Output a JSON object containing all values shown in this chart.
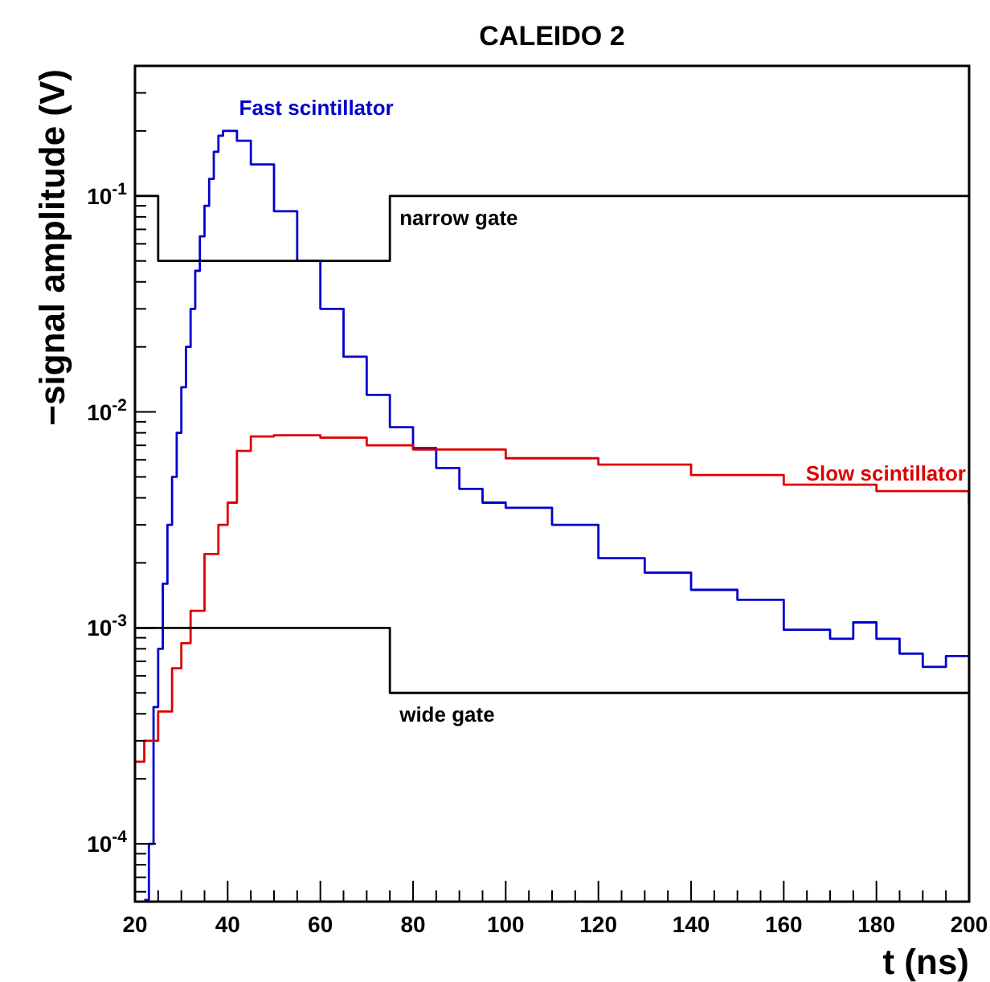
{
  "chart_data": {
    "type": "step",
    "title": "CALEIDO 2",
    "xlabel": "t (ns)",
    "ylabel": "−signal amplitude (V)",
    "log": "y",
    "xlim": [
      20,
      200
    ],
    "ylim": [
      5.4e-05,
      0.4
    ],
    "xticks": [
      20,
      {
        "value": 25,
        "label": null
      },
      {
        "value": 30,
        "label": null
      },
      {
        "value": 35,
        "label": null
      },
      40,
      {
        "value": 45,
        "label": null
      },
      {
        "value": 50,
        "label": null
      },
      {
        "value": 55,
        "label": null
      },
      60,
      {
        "value": 65,
        "label": null
      },
      {
        "value": 70,
        "label": null
      },
      {
        "value": 75,
        "label": null
      },
      80,
      {
        "value": 85,
        "label": null
      },
      {
        "value": 90,
        "label": null
      },
      {
        "value": 95,
        "label": null
      },
      100,
      {
        "value": 105,
        "label": null
      },
      {
        "value": 110,
        "label": null
      },
      {
        "value": 115,
        "label": null
      },
      120,
      {
        "value": 125,
        "label": null
      },
      {
        "value": 130,
        "label": null
      },
      {
        "value": 135,
        "label": null
      },
      140,
      {
        "value": 145,
        "label": null
      },
      {
        "value": 150,
        "label": null
      },
      {
        "value": 155,
        "label": null
      },
      160,
      {
        "value": 165,
        "label": null
      },
      {
        "value": 170,
        "label": null
      },
      {
        "value": 175,
        "label": null
      },
      180,
      {
        "value": 185,
        "label": null
      },
      {
        "value": 190,
        "label": null
      },
      {
        "value": 195,
        "label": null
      },
      200
    ],
    "yticks": [
      {
        "value": 6e-05,
        "label": null
      },
      {
        "value": 7e-05,
        "label": null
      },
      {
        "value": 8e-05,
        "label": null
      },
      {
        "value": 9e-05,
        "label": null
      },
      {
        "value": 0.0001,
        "label": "10$^{-4}$"
      },
      {
        "value": 0.0002,
        "label": null
      },
      {
        "value": 0.0003,
        "label": null
      },
      {
        "value": 0.0004,
        "label": null
      },
      {
        "value": 0.0005,
        "label": null
      },
      {
        "value": 0.0006,
        "label": null
      },
      {
        "value": 0.0007,
        "label": null
      },
      {
        "value": 0.0008,
        "label": null
      },
      {
        "value": 0.0009,
        "label": null
      },
      {
        "value": 0.001,
        "label": "10$^{-3}$"
      },
      {
        "value": 0.002,
        "label": null
      },
      {
        "value": 0.003,
        "label": null
      },
      {
        "value": 0.004,
        "label": null
      },
      {
        "value": 0.005,
        "label": null
      },
      {
        "value": 0.006,
        "label": null
      },
      {
        "value": 0.007,
        "label": null
      },
      {
        "value": 0.008,
        "label": null
      },
      {
        "value": 0.009,
        "label": null
      },
      {
        "value": 0.01,
        "label": "10$^{-2}$"
      },
      {
        "value": 0.02,
        "label": null
      },
      {
        "value": 0.03,
        "label": null
      },
      {
        "value": 0.04,
        "label": null
      },
      {
        "value": 0.05,
        "label": null
      },
      {
        "value": 0.06,
        "label": null
      },
      {
        "value": 0.07,
        "label": null
      },
      {
        "value": 0.08,
        "label": null
      },
      {
        "value": 0.09,
        "label": null
      },
      {
        "value": 0.1,
        "label": "10$^{-1}$"
      },
      {
        "value": 0.2,
        "label": null
      },
      {
        "value": 0.3,
        "label": null
      },
      {
        "value": 0.4,
        "label": null
      }
    ],
    "series": [
      {
        "name": "Fast scintillator",
        "color": "#0000cc",
        "x": [
          22,
          23,
          24,
          25,
          26,
          27,
          28,
          29,
          30,
          31,
          32,
          33,
          34,
          35,
          36,
          37,
          38,
          39,
          40,
          42,
          45,
          50,
          55,
          60,
          65,
          70,
          75,
          80,
          85,
          90,
          95,
          100,
          110,
          120,
          130,
          140,
          150,
          160,
          170,
          175,
          180,
          185,
          190,
          195,
          200
        ],
        "values": [
          5.5e-05,
          0.0001,
          0.00043,
          0.0008,
          0.0016,
          0.003,
          0.005,
          0.008,
          0.013,
          0.02,
          0.03,
          0.045,
          0.065,
          0.09,
          0.12,
          0.16,
          0.19,
          0.2,
          0.2,
          0.18,
          0.14,
          0.085,
          0.05,
          0.03,
          0.018,
          0.012,
          0.0085,
          0.0068,
          0.0055,
          0.0044,
          0.0038,
          0.0036,
          0.003,
          0.0021,
          0.0018,
          0.0015,
          0.00135,
          0.00098,
          0.00089,
          0.00106,
          0.00089,
          0.00076,
          0.00066,
          0.00074,
          0.00074
        ]
      },
      {
        "name": "Slow scintillator",
        "color": "#dd0000",
        "x": [
          20,
          22,
          25,
          28,
          30,
          32,
          35,
          38,
          40,
          42,
          45,
          50,
          55,
          60,
          70,
          80,
          100,
          120,
          140,
          160,
          180,
          200
        ],
        "values": [
          0.00024,
          0.0003,
          0.00041,
          0.00065,
          0.00085,
          0.0012,
          0.0022,
          0.003,
          0.0038,
          0.0066,
          0.0077,
          0.0078,
          0.0078,
          0.0076,
          0.007,
          0.0067,
          0.0061,
          0.0057,
          0.0051,
          0.0046,
          0.0043,
          0.0038
        ]
      },
      {
        "name": "narrow gate",
        "color": "#000000",
        "x": [
          20,
          25,
          75,
          200
        ],
        "values": [
          0.1,
          0.05,
          0.1,
          0.1
        ]
      },
      {
        "name": "wide gate",
        "color": "#000000",
        "x": [
          20,
          75,
          200
        ],
        "values": [
          0.001,
          0.0005,
          0.0005
        ]
      }
    ]
  }
}
